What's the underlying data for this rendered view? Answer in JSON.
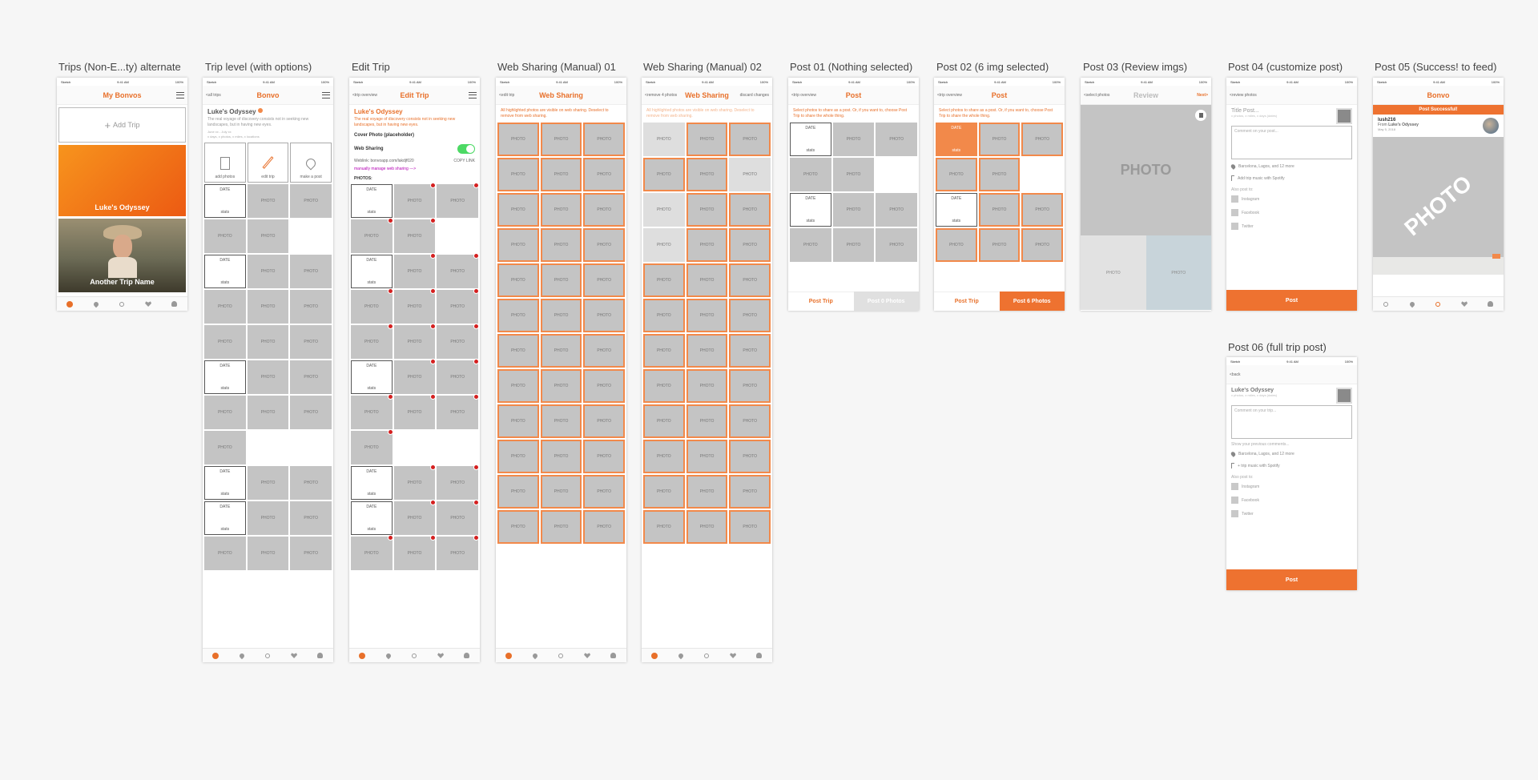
{
  "status": {
    "carrier": "Sketch",
    "time": "9:41 AM",
    "battery": "100%"
  },
  "labels": [
    "Trips (Non-E...ty) alternate",
    "Trip level (with options)",
    "Edit Trip",
    "Web Sharing (Manual) 01",
    "Web Sharing (Manual) 02",
    "Post 01 (Nothing selected)",
    "Post 02 (6 img selected)",
    "Post 03 (Review imgs)",
    "Post 04 (customize post)",
    "Post 05 (Success! to feed)",
    "Post 06 (full trip post)"
  ],
  "cell": {
    "photo": "PHOTO",
    "date": "DATE",
    "stats": "stats"
  },
  "trips": {
    "title": "My Bonvos",
    "add_trip": "Add Trip",
    "card1": "Luke's Odyssey",
    "card2": "Another Trip Name",
    "card1_gradient": [
      "#f7941d",
      "#ec5a13"
    ]
  },
  "trip_level": {
    "back": "<all trips",
    "title": "Bonvo",
    "trip_name": "Luke's Odyssey",
    "desc": "The real voyage of discovery consists not in seeking new landscapes, but in having new eyes.",
    "dates": "June xx - July xx",
    "meta": "x days, x photos, x miles, x  locations",
    "actions": [
      "add photos",
      "edit trip",
      "make a post"
    ]
  },
  "edit_trip": {
    "back": "<trip overview",
    "title": "Edit Trip",
    "trip_name": "Luke's Odyssey",
    "desc": "The real voyage of discovery consists not in seeking new landscapes, but in having new eyes.",
    "cover": "Cover Photo (placeholder)",
    "web_sharing": "Web Sharing",
    "weblink": "Weblink: bonvoapp.com/lakdjf020",
    "copy": "COPY LINK",
    "manual": "manually manage web sharing --->",
    "photos": "PHOTOS:"
  },
  "web01": {
    "back": "<edit trip",
    "title": "Web Sharing",
    "hint": "All highlighted photos are visible on web sharing. Deselect to remove from web sharing."
  },
  "web02": {
    "back": "<remove 4 photos",
    "title": "Web Sharing",
    "right": "discard changes",
    "hint": "All highlighted photos are visible on web sharing. Deselect to remove from web sharing."
  },
  "post01": {
    "back": "<trip overview",
    "title": "Post",
    "hint": "Select photos to share as a post. Or, if you want to, choose Post Trip to share the whole thing.",
    "btn_left": "Post Trip",
    "btn_right": "Post 0 Photos"
  },
  "post02": {
    "back": "<trip overview",
    "title": "Post",
    "hint": "Select photos to share as a post. Or, if you want to, choose Post Trip to share the whole thing.",
    "btn_left": "Post Trip",
    "btn_right": "Post 6 Photos"
  },
  "post03": {
    "back": "<select photos",
    "title": "Review",
    "right": "Next>"
  },
  "post04": {
    "back": "<review photos",
    "title_placeholder": "Title Post...",
    "meta": "x photos, x miles, x days (dates)",
    "comment": "Comment on your post...",
    "location": "Barcelona, Lagos, and 12 more",
    "music": "Add trip music with Spotify",
    "also": "Also post to:",
    "networks": [
      "Instagram",
      "Facebook",
      "Twitter"
    ],
    "post": "Post"
  },
  "post05": {
    "title": "Bonvo",
    "success": "Post Successful!",
    "user": "lush216",
    "from_label": "From",
    "from_trip": "Luke's Odyssey",
    "date": "May 5, 2018"
  },
  "post06": {
    "back": "<back",
    "trip_name": "Luke's Odyssey",
    "meta": "x photos, x miles, x days (dates)",
    "comment": "Comment on your trip...",
    "previous": "Show your previous comments...",
    "location": "Barcelona, Lagos, and 12 more",
    "music": "+ trip music with Spotify",
    "also": "Also post to:",
    "networks": [
      "Instagram",
      "Facebook",
      "Twitter"
    ],
    "post": "Post"
  }
}
